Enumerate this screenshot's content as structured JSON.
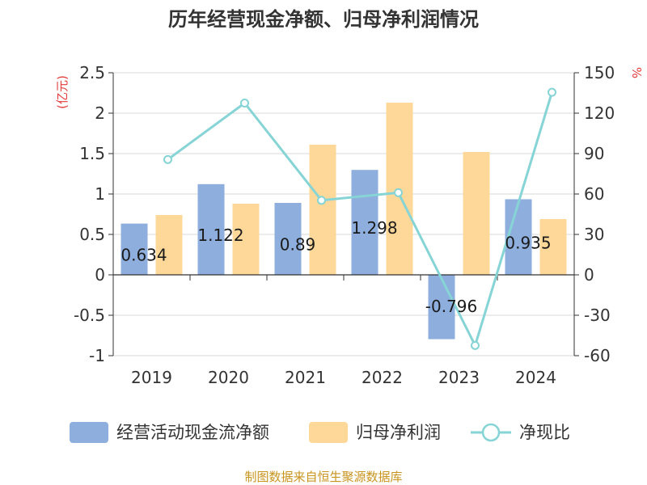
{
  "chart_data": {
    "type": "bar",
    "title": "历年经营现金净额、归母净利润情况",
    "categories": [
      "2019",
      "2020",
      "2021",
      "2022",
      "2023",
      "2024"
    ],
    "y_left": {
      "unit": "(亿元)",
      "ylim": [
        -1,
        2.5
      ],
      "ticks": [
        "-1",
        "-0.5",
        "0",
        "0.5",
        "1",
        "1.5",
        "2",
        "2.5"
      ]
    },
    "y_right": {
      "unit": "%",
      "ylim": [
        -60,
        150
      ],
      "ticks": [
        "-60",
        "-30",
        "0",
        "30",
        "60",
        "90",
        "120",
        "150"
      ]
    },
    "series": [
      {
        "name": "经营活动现金流净额",
        "kind": "bar",
        "axis": "left",
        "color": "#8eaedd",
        "values": [
          0.634,
          1.122,
          0.89,
          1.298,
          -0.796,
          0.935
        ],
        "labels": [
          "0.634",
          "1.122",
          "0.89",
          "1.298",
          "-0.796",
          "0.935"
        ]
      },
      {
        "name": "归母净利润",
        "kind": "bar",
        "axis": "left",
        "color": "#fdd898",
        "values": [
          0.74,
          0.88,
          1.61,
          2.13,
          1.52,
          0.69
        ]
      },
      {
        "name": "净现比",
        "kind": "line",
        "axis": "right",
        "color": "#86d4d5",
        "values": [
          85.6,
          127.5,
          55.3,
          61.0,
          -52.4,
          135.5
        ]
      }
    ],
    "legend_position": "bottom",
    "source": "制图数据来自恒生聚源数据库"
  }
}
